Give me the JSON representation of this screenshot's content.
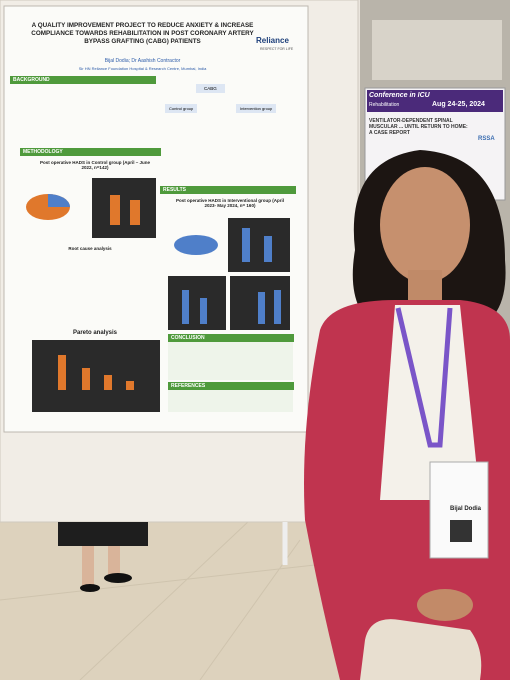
{
  "poster": {
    "logo": {
      "name": "Reliance",
      "tagline": "RESPECT FOR LIFE"
    },
    "title": "A QUALITY IMPROVEMENT PROJECT TO REDUCE ANXIETY & INCREASE COMPLIANCE TOWARDS REHABILITATION IN POST CORONARY ARTERY BYPASS GRAFTING (CABG) PATIENTS",
    "authors": "Bijal Dodia; Dr Aashish Contractor",
    "affiliation": "Sir HN Reliance Foundation Hospital & Research Centre, Mumbai, India",
    "sections": [
      "BACKGROUND",
      "METHODOLOGY",
      "RESULTS",
      "CONCLUSION",
      "REFERENCES"
    ],
    "flow": {
      "top": "CABG",
      "left": "Control group",
      "right": "Intervention group"
    },
    "chart_titles": {
      "control": "Post operative HADS in Control group (April – June 2022, n=142)",
      "root_cause": "Root cause analysis",
      "pareto": "Pareto analysis",
      "intervention": "Post operative HADS in Interventional group (April 2023- May 2024, n= 160)"
    }
  },
  "neighbor_poster": {
    "banner": "Conference in ICU",
    "subbanner": "Rehabilitation",
    "dates": "Aug 24-25, 2024",
    "title": "VENTILATOR-DEPENDENT SPINAL MUSCULAR ... UNTIL RETURN TO HOME: A CASE REPORT",
    "logo": "RSSA"
  },
  "badge": {
    "name": "Bijal Dodia"
  }
}
